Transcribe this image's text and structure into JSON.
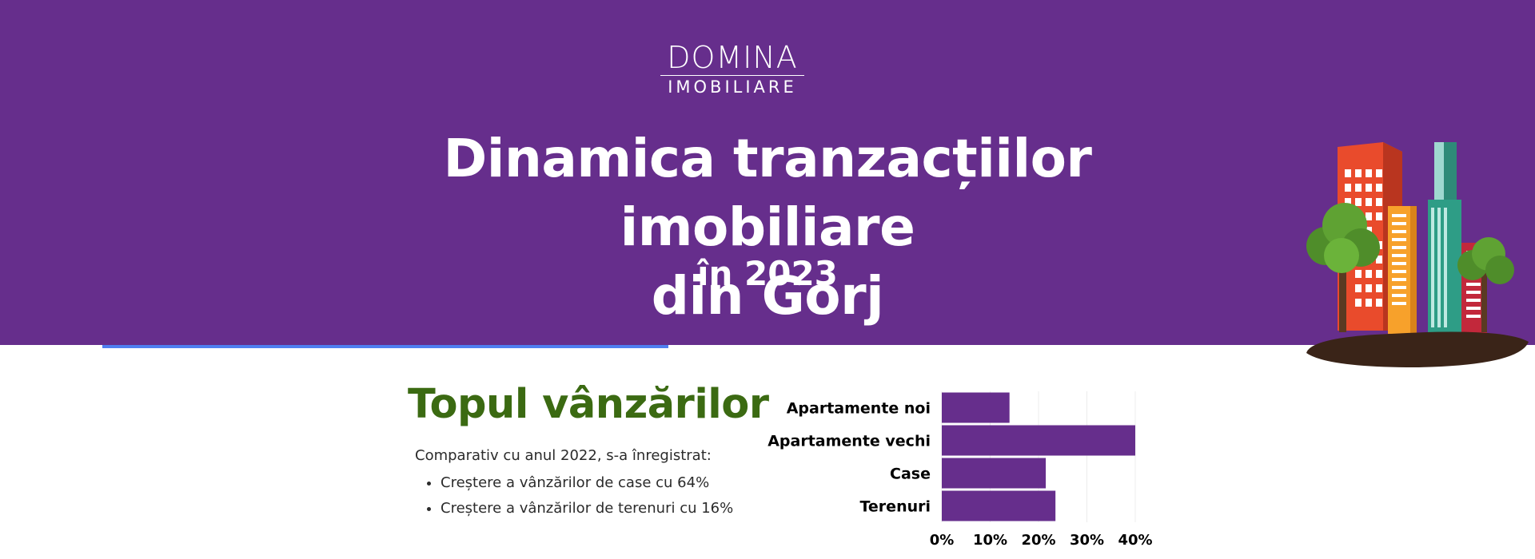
{
  "brand": {
    "logo_line1": "DOMINA",
    "logo_line2": "IMOBILIARE"
  },
  "header": {
    "title_line1": "Dinamica tranzacțiilor imobiliare",
    "title_line2": "din Gorj",
    "subtitle": "în 2023"
  },
  "section": {
    "heading": "Topul vânzărilor",
    "intro": "Comparativ cu anul 2022, s-a înregistrat:",
    "bullets": [
      "Creștere a vânzărilor de case cu 64%",
      "Creștere a vânzărilor de terenuri cu 16%"
    ]
  },
  "colors": {
    "brand": "#662e8c",
    "heading": "#3b6a12",
    "accent": "#4f7ef0",
    "bar": "#662e8c"
  },
  "chart_data": {
    "type": "bar",
    "orientation": "horizontal",
    "categories": [
      "Apartamente noi",
      "Apartamente vechi",
      "Case",
      "Terenuri"
    ],
    "values": [
      14,
      40,
      21.5,
      23.5
    ],
    "xlim": [
      0,
      40
    ],
    "xticks": [
      "0%",
      "10%",
      "20%",
      "30%",
      "40%"
    ],
    "grid": true
  }
}
